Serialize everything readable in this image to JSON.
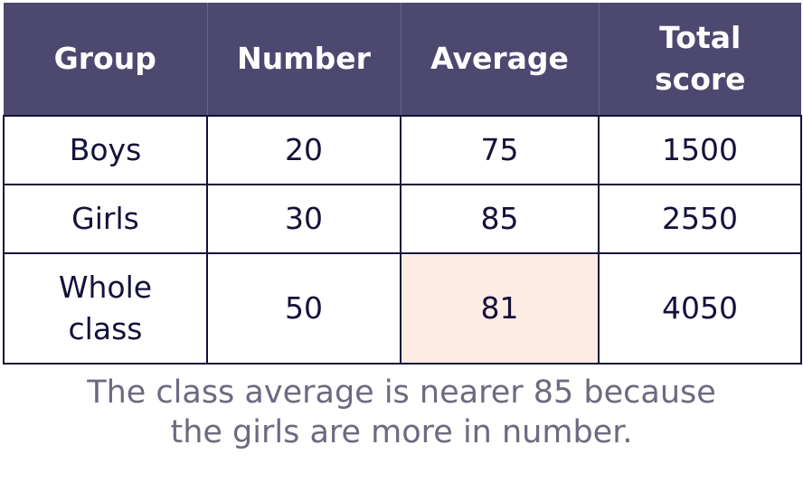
{
  "table": {
    "header": [
      "Group",
      "Number",
      "Average",
      "Total score"
    ],
    "rows": [
      [
        "Boys",
        "20",
        "75",
        "1500"
      ],
      [
        "Girls",
        "30",
        "85",
        "2550"
      ],
      [
        "Whole class",
        "50",
        "81",
        "4050"
      ]
    ]
  },
  "caption": [
    "The class average is nearer 85 because",
    "the girls are more in number."
  ]
}
